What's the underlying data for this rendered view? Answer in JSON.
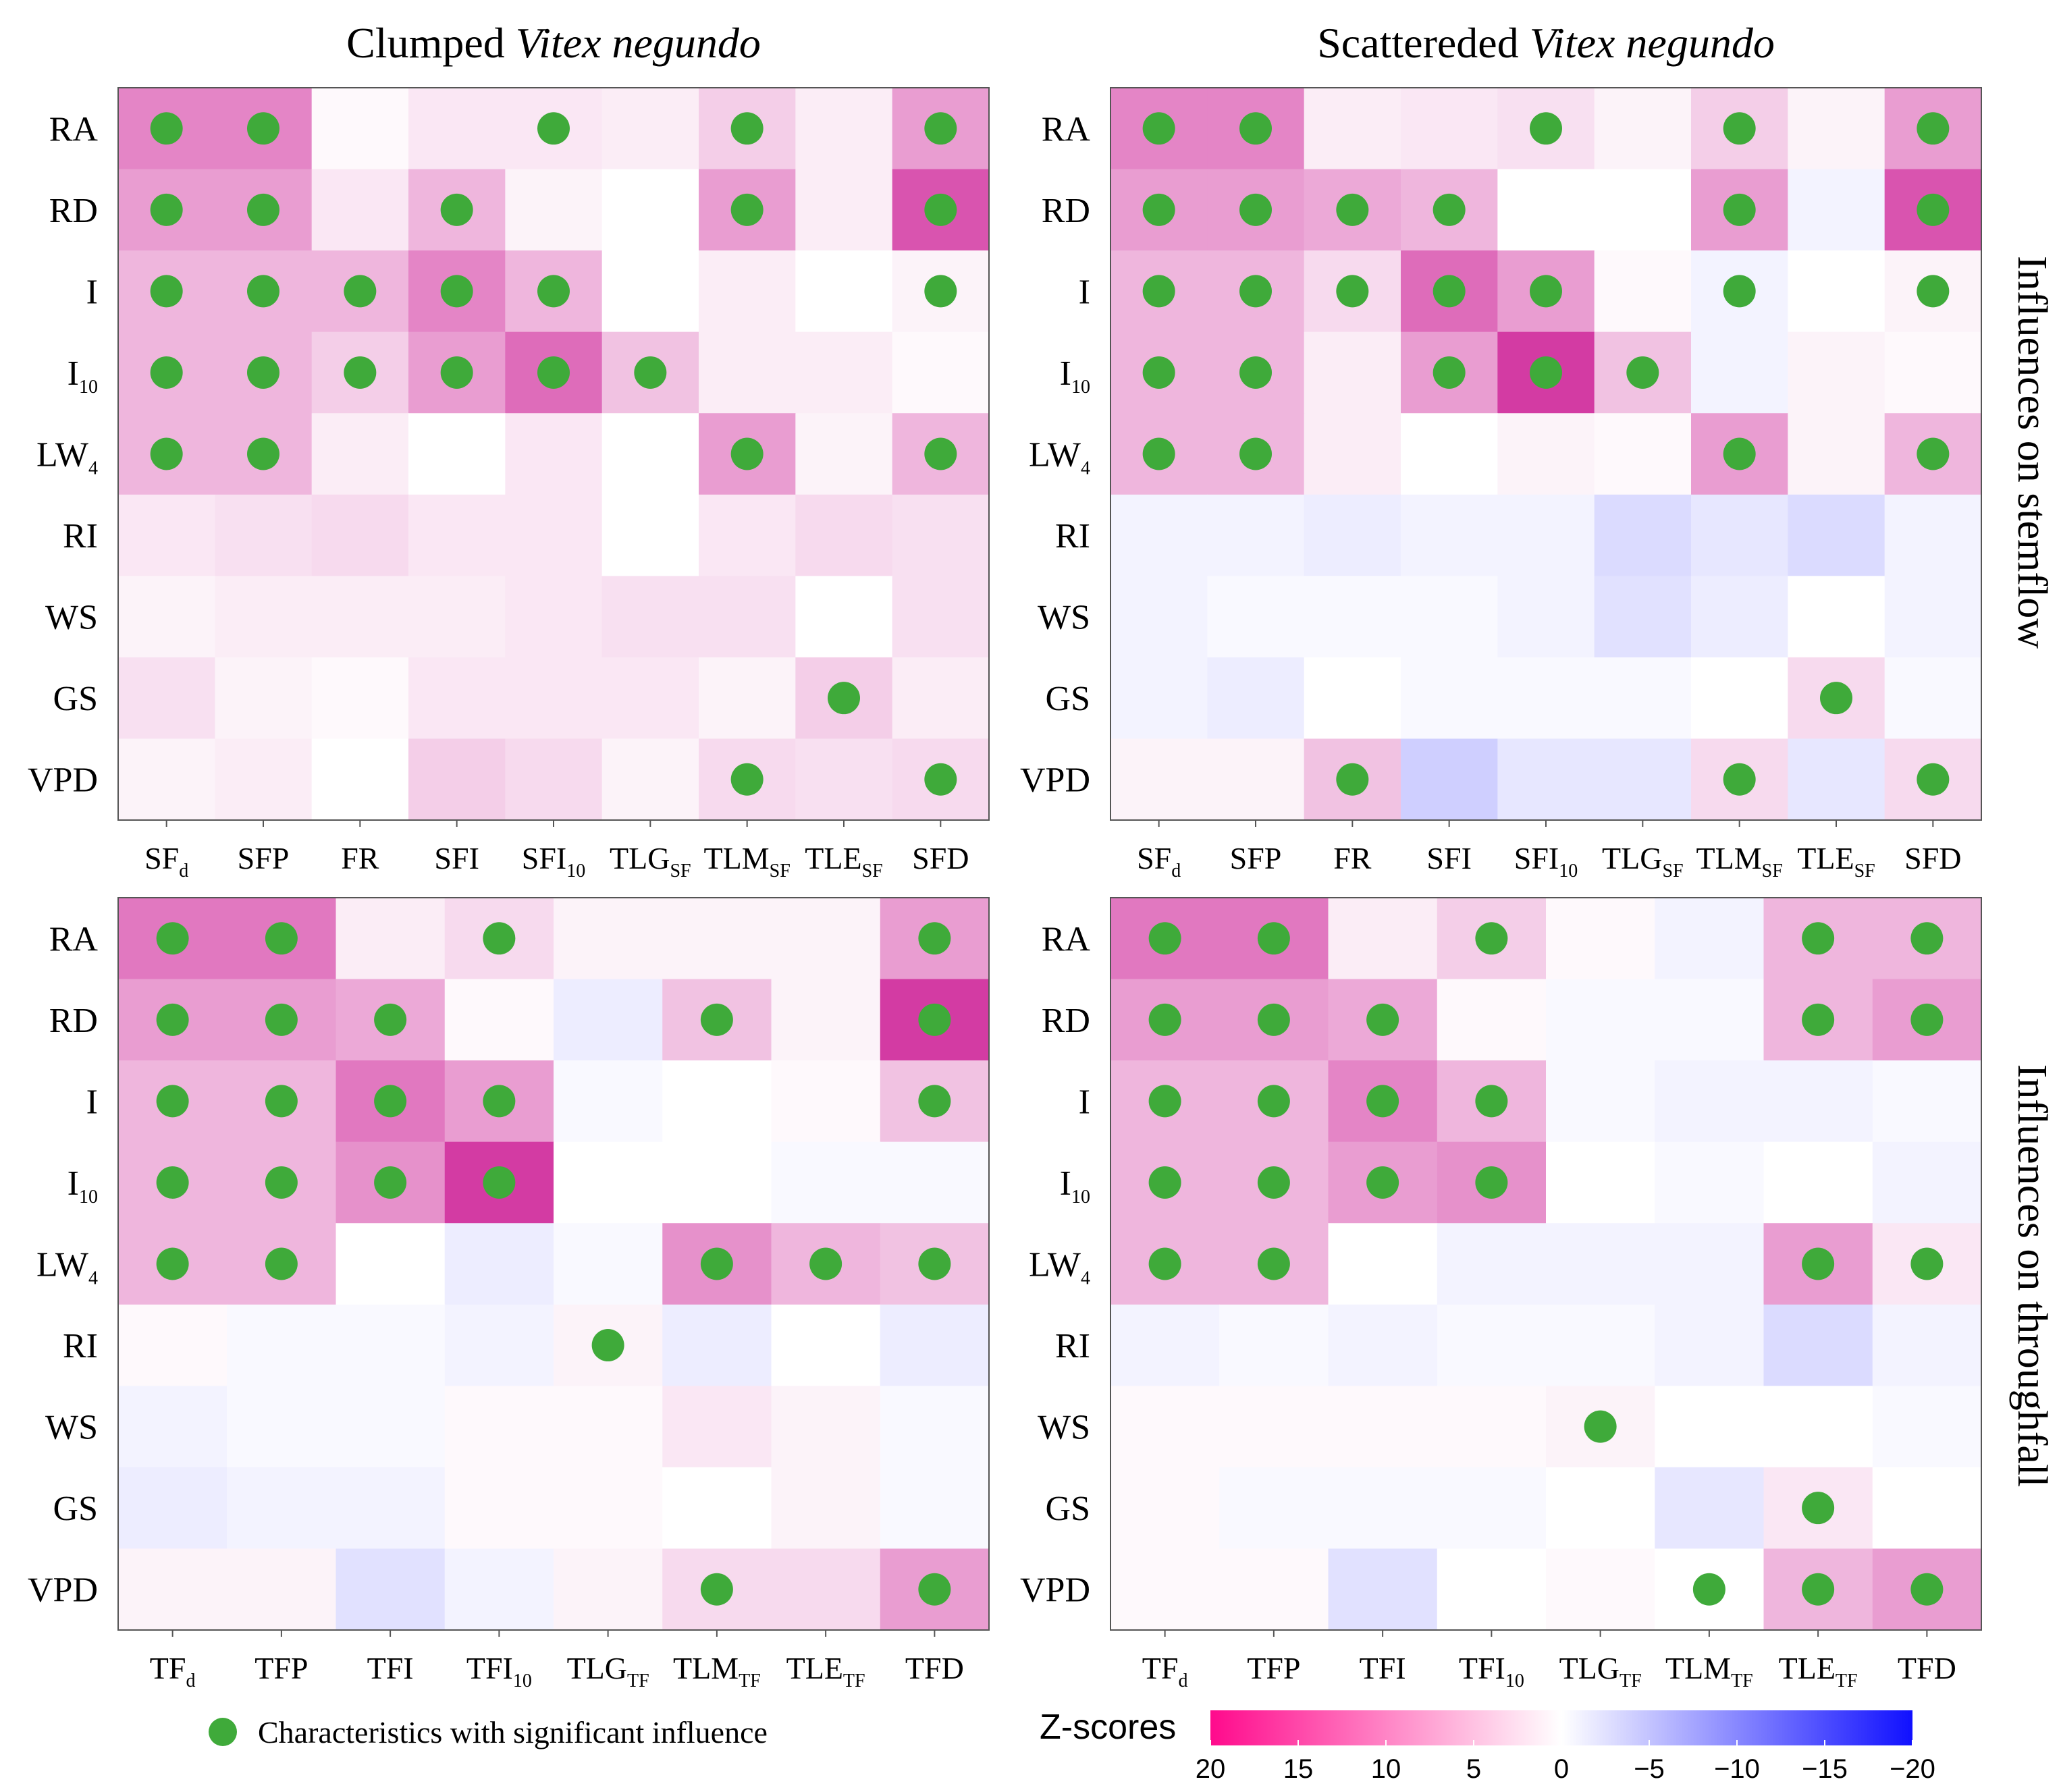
{
  "figure": {
    "side_labels": {
      "top": "Influences on stemflow",
      "bottom": "Influences on throughfall"
    },
    "legend_label": "Characteristics with significant influence",
    "colorbar": {
      "title": "Z-scores",
      "range": [
        20,
        -20
      ],
      "ticks": [
        "20",
        "15",
        "10",
        "5",
        "0",
        "−5",
        "−10",
        "−15",
        "−20"
      ]
    },
    "colors": {
      "positive": "#ff0a8c",
      "negative": "#1010ff",
      "neutral": "#ffffff",
      "dot": "#3faa3a"
    }
  },
  "chart_data": [
    {
      "type": "heatmap",
      "id": "clumped-stemflow",
      "title": "Clumped ",
      "title_italic": "Vitex negundo",
      "rows": [
        "RA",
        "RD",
        "I",
        "I|10",
        "LW|4",
        "RI",
        "WS",
        "GS",
        "VPD"
      ],
      "columns": [
        "SF|d",
        "SFP",
        "FR",
        "SFI",
        "SFI|10",
        "TLG|SF",
        "TLM|SF",
        "TLE|SF",
        "SFD"
      ],
      "zscore_range": [
        -20,
        20
      ],
      "values": [
        [
          10,
          10,
          0.5,
          2,
          2,
          1.5,
          4,
          1.5,
          8
        ],
        [
          8,
          8,
          2,
          6,
          1,
          0,
          8,
          1.5,
          14
        ],
        [
          6,
          6,
          6,
          10,
          6,
          0,
          1.5,
          0,
          1
        ],
        [
          6,
          6,
          4,
          8,
          12,
          5,
          1.5,
          1.5,
          0.5
        ],
        [
          6,
          6,
          1.5,
          0,
          2,
          0,
          8,
          1,
          6
        ],
        [
          2,
          2.5,
          3,
          2,
          2,
          0,
          2,
          3,
          2.5
        ],
        [
          1,
          1.5,
          1.5,
          1.5,
          2,
          2.5,
          2.5,
          0,
          2.5
        ],
        [
          2.5,
          1,
          0.5,
          2,
          2,
          2,
          1,
          4,
          1.5
        ],
        [
          1,
          1.5,
          0,
          4,
          3,
          1,
          3,
          2.5,
          3
        ]
      ],
      "significant": [
        [
          1,
          1,
          0,
          0,
          1,
          0,
          1,
          0,
          1
        ],
        [
          1,
          1,
          0,
          1,
          0,
          0,
          1,
          0,
          1
        ],
        [
          1,
          1,
          1,
          1,
          1,
          0,
          0,
          0,
          1
        ],
        [
          1,
          1,
          1,
          1,
          1,
          1,
          0,
          0,
          0
        ],
        [
          1,
          1,
          0,
          0,
          0,
          0,
          1,
          0,
          1
        ],
        [
          0,
          0,
          0,
          0,
          0,
          0,
          0,
          0,
          0
        ],
        [
          0,
          0,
          0,
          0,
          0,
          0,
          0,
          0,
          0
        ],
        [
          0,
          0,
          0,
          0,
          0,
          0,
          0,
          1,
          0
        ],
        [
          0,
          0,
          0,
          0,
          0,
          0,
          1,
          0,
          1
        ]
      ]
    },
    {
      "type": "heatmap",
      "id": "scattered-stemflow",
      "title": "Scattereded ",
      "title_italic": "Vitex negundo",
      "rows": [
        "RA",
        "RD",
        "I",
        "I|10",
        "LW|4",
        "RI",
        "WS",
        "GS",
        "VPD"
      ],
      "columns": [
        "SF|d",
        "SFP",
        "FR",
        "SFI",
        "SFI|10",
        "TLG|SF",
        "TLM|SF",
        "TLE|SF",
        "SFD"
      ],
      "zscore_range": [
        -20,
        20
      ],
      "values": [
        [
          10,
          10,
          1.5,
          2,
          2.5,
          1,
          4,
          1,
          8
        ],
        [
          8,
          8,
          7,
          6,
          0,
          0,
          8,
          -1,
          14
        ],
        [
          6,
          6,
          3,
          12,
          8,
          0.5,
          -1,
          0,
          1
        ],
        [
          6,
          6,
          1.5,
          8,
          16,
          5,
          -1,
          1,
          0.5
        ],
        [
          6,
          6,
          1.5,
          0,
          1,
          0.5,
          8,
          1,
          6
        ],
        [
          -1,
          -1,
          -1.5,
          -1,
          -1,
          -3,
          -2,
          -3,
          -1
        ],
        [
          -1,
          -0.5,
          -0.5,
          -0.5,
          -1,
          -2.5,
          -1.5,
          0,
          -1
        ],
        [
          -1,
          -1.5,
          0,
          -0.5,
          -0.5,
          -0.5,
          0,
          3,
          -0.5
        ],
        [
          1,
          1,
          5,
          -4,
          -2,
          -2,
          3,
          -2,
          3
        ]
      ],
      "significant": [
        [
          1,
          1,
          0,
          0,
          1,
          0,
          1,
          0,
          1
        ],
        [
          1,
          1,
          1,
          1,
          0,
          0,
          1,
          0,
          1
        ],
        [
          1,
          1,
          1,
          1,
          1,
          0,
          1,
          0,
          1
        ],
        [
          1,
          1,
          0,
          1,
          1,
          1,
          0,
          0,
          0
        ],
        [
          1,
          1,
          0,
          0,
          0,
          0,
          1,
          0,
          1
        ],
        [
          0,
          0,
          0,
          0,
          0,
          0,
          0,
          0,
          0
        ],
        [
          0,
          0,
          0,
          0,
          0,
          0,
          0,
          0,
          0
        ],
        [
          0,
          0,
          0,
          0,
          0,
          0,
          0,
          1,
          0
        ],
        [
          0,
          0,
          1,
          0,
          0,
          0,
          1,
          0,
          1
        ]
      ]
    },
    {
      "type": "heatmap",
      "id": "clumped-throughfall",
      "title": "",
      "title_italic": "",
      "rows": [
        "RA",
        "RD",
        "I",
        "I|10",
        "LW|4",
        "RI",
        "WS",
        "GS",
        "VPD"
      ],
      "columns": [
        "TF|d",
        "TFP",
        "TFI",
        "TFI|10",
        "TLG|TF",
        "TLM|TF",
        "TLE|TF",
        "TFD"
      ],
      "zscore_range": [
        -20,
        20
      ],
      "values": [
        [
          11,
          11,
          1.5,
          3,
          1,
          1,
          1,
          8
        ],
        [
          8,
          8,
          7,
          0.5,
          -1.5,
          5,
          1,
          16
        ],
        [
          6,
          6,
          11,
          8,
          -0.5,
          0,
          0.5,
          5
        ],
        [
          6,
          6,
          9,
          16,
          0,
          0,
          -0.5,
          -0.5
        ],
        [
          6,
          6,
          0,
          -1.5,
          -0.5,
          9,
          6,
          5
        ],
        [
          0.5,
          -0.5,
          -0.5,
          -1,
          1,
          -1.5,
          0,
          -1.5
        ],
        [
          -1,
          -0.5,
          -0.5,
          0.5,
          0.5,
          2,
          1,
          -0.5
        ],
        [
          -1.5,
          -1,
          -1,
          0.5,
          0.5,
          0,
          1,
          -0.5
        ],
        [
          1,
          1,
          -2.5,
          -1,
          1,
          3,
          3,
          8
        ]
      ],
      "significant": [
        [
          1,
          1,
          0,
          1,
          0,
          0,
          0,
          1
        ],
        [
          1,
          1,
          1,
          0,
          0,
          1,
          0,
          1
        ],
        [
          1,
          1,
          1,
          1,
          0,
          0,
          0,
          1
        ],
        [
          1,
          1,
          1,
          1,
          0,
          0,
          0,
          0
        ],
        [
          1,
          1,
          0,
          0,
          0,
          1,
          1,
          1
        ],
        [
          0,
          0,
          0,
          0,
          1,
          0,
          0,
          0
        ],
        [
          0,
          0,
          0,
          0,
          0,
          0,
          0,
          0
        ],
        [
          0,
          0,
          0,
          0,
          0,
          0,
          0,
          0
        ],
        [
          0,
          0,
          0,
          0,
          0,
          1,
          0,
          1
        ]
      ]
    },
    {
      "type": "heatmap",
      "id": "scattered-throughfall",
      "title": "",
      "title_italic": "",
      "rows": [
        "RA",
        "RD",
        "I",
        "I|10",
        "LW|4",
        "RI",
        "WS",
        "GS",
        "VPD"
      ],
      "columns": [
        "TF|d",
        "TFP",
        "TFI",
        "TFI|10",
        "TLG|TF",
        "TLM|TF",
        "TLE|TF",
        "TFD"
      ],
      "zscore_range": [
        -20,
        20
      ],
      "values": [
        [
          11,
          11,
          1.5,
          4,
          0.5,
          -1,
          6,
          6
        ],
        [
          8,
          8,
          7,
          0.5,
          -0.5,
          -0.5,
          6,
          8
        ],
        [
          6,
          6,
          10,
          6,
          -0.5,
          -1,
          -1,
          -0.5
        ],
        [
          6,
          6,
          8,
          9,
          0,
          -0.5,
          0,
          -1
        ],
        [
          6,
          6,
          0,
          -1,
          -1,
          -1,
          8,
          2
        ],
        [
          -1,
          -0.5,
          -1,
          -0.5,
          -0.5,
          -1,
          -3,
          -1
        ],
        [
          0.5,
          0.5,
          0.5,
          0.5,
          1,
          0,
          0,
          -0.5
        ],
        [
          0.5,
          -0.5,
          -0.5,
          -0.5,
          0,
          -2,
          2,
          0
        ],
        [
          0.5,
          0.5,
          -2.5,
          0,
          0.5,
          0,
          6,
          8
        ]
      ],
      "significant": [
        [
          1,
          1,
          0,
          1,
          0,
          0,
          1,
          1
        ],
        [
          1,
          1,
          1,
          0,
          0,
          0,
          1,
          1
        ],
        [
          1,
          1,
          1,
          1,
          0,
          0,
          0,
          0
        ],
        [
          1,
          1,
          1,
          1,
          0,
          0,
          0,
          0
        ],
        [
          1,
          1,
          0,
          0,
          0,
          0,
          1,
          1
        ],
        [
          0,
          0,
          0,
          0,
          0,
          0,
          0,
          0
        ],
        [
          0,
          0,
          0,
          0,
          1,
          0,
          0,
          0
        ],
        [
          0,
          0,
          0,
          0,
          0,
          0,
          1,
          0
        ],
        [
          0,
          0,
          0,
          0,
          0,
          1,
          1,
          1
        ]
      ]
    }
  ]
}
